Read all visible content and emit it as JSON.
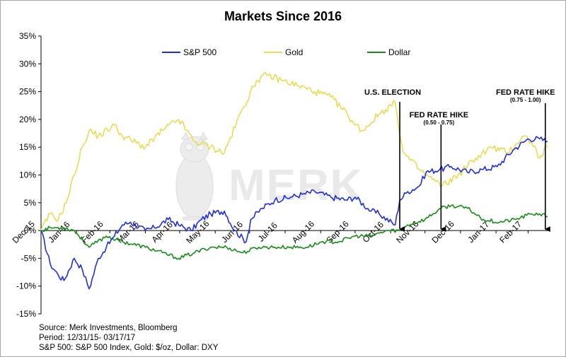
{
  "chart_data": {
    "type": "line",
    "title": "Markets Since 2016",
    "ylim": [
      -15,
      35
    ],
    "y_ticks": [
      "35%",
      "30%",
      "25%",
      "20%",
      "15%",
      "10%",
      "5%",
      "0%",
      "-5%",
      "-10%",
      "-15%"
    ],
    "x_ticks": [
      "Dec-15",
      "Jan-16",
      "Feb-16",
      "Mar-16",
      "Apr-16",
      "May-16",
      "Jun-16",
      "Jul-16",
      "Aug-16",
      "Sep-16",
      "Oct-16",
      "Nov-16",
      "Dec-16",
      "Jan-17",
      "Feb-17"
    ],
    "legend_position": "top",
    "grid": false,
    "series": [
      {
        "name": "S&P 500",
        "color": "#1f2fe0",
        "x": [
          "2015-12-31",
          "2016-01-08",
          "2016-01-15",
          "2016-01-20",
          "2016-01-29",
          "2016-02-05",
          "2016-02-11",
          "2016-02-19",
          "2016-02-26",
          "2016-03-04",
          "2016-03-11",
          "2016-03-18",
          "2016-03-31",
          "2016-04-08",
          "2016-04-20",
          "2016-04-29",
          "2016-05-10",
          "2016-05-19",
          "2016-05-27",
          "2016-06-08",
          "2016-06-17",
          "2016-06-27",
          "2016-07-01",
          "2016-07-11",
          "2016-07-22",
          "2016-08-05",
          "2016-08-15",
          "2016-08-26",
          "2016-09-09",
          "2016-09-22",
          "2016-09-30",
          "2016-10-14",
          "2016-10-21",
          "2016-11-04",
          "2016-11-08",
          "2016-11-15",
          "2016-11-25",
          "2016-12-01",
          "2016-12-13",
          "2016-12-23",
          "2017-01-06",
          "2017-01-20",
          "2017-02-01",
          "2017-02-15",
          "2017-02-28",
          "2017-03-10",
          "2017-03-17"
        ],
        "values": [
          0,
          -6,
          -8,
          -9,
          -5,
          -7,
          -10.5,
          -5,
          -3,
          -1,
          1,
          1.5,
          0,
          0.5,
          2,
          1,
          0,
          2,
          3,
          3.5,
          0,
          -2,
          2,
          4,
          5.5,
          6,
          6.5,
          7,
          6,
          5.5,
          6,
          3.5,
          3,
          1,
          5.5,
          7,
          8,
          10.5,
          11,
          11.5,
          10.5,
          11,
          11.5,
          14.5,
          16.5,
          16.5,
          16
        ]
      },
      {
        "name": "Gold",
        "color": "#e8dc57",
        "x": [
          "2015-12-31",
          "2016-01-08",
          "2016-01-15",
          "2016-01-22",
          "2016-01-29",
          "2016-02-05",
          "2016-02-11",
          "2016-02-19",
          "2016-03-04",
          "2016-03-11",
          "2016-03-31",
          "2016-04-15",
          "2016-04-29",
          "2016-05-13",
          "2016-05-27",
          "2016-06-08",
          "2016-06-24",
          "2016-07-06",
          "2016-07-15",
          "2016-07-29",
          "2016-08-12",
          "2016-08-26",
          "2016-09-09",
          "2016-09-23",
          "2016-09-30",
          "2016-10-07",
          "2016-10-21",
          "2016-11-04",
          "2016-11-11",
          "2016-11-25",
          "2016-12-01",
          "2016-12-15",
          "2016-12-29",
          "2017-01-13",
          "2017-01-27",
          "2017-02-10",
          "2017-02-24",
          "2017-03-03",
          "2017-03-10",
          "2017-03-17"
        ],
        "values": [
          0,
          3,
          2,
          5,
          10,
          15,
          18,
          17,
          19,
          17,
          15,
          18,
          20,
          16,
          15,
          14,
          22,
          27,
          28,
          27,
          26,
          25,
          24,
          21,
          19,
          18,
          21,
          23,
          14,
          11,
          10,
          8,
          10,
          13,
          15,
          14,
          17,
          16,
          13,
          15
        ]
      },
      {
        "name": "Dollar",
        "color": "#1a8a1a",
        "x": [
          "2015-12-31",
          "2016-01-08",
          "2016-01-20",
          "2016-01-29",
          "2016-02-11",
          "2016-02-26",
          "2016-03-11",
          "2016-03-31",
          "2016-04-15",
          "2016-04-29",
          "2016-05-13",
          "2016-05-27",
          "2016-06-10",
          "2016-06-24",
          "2016-07-08",
          "2016-07-22",
          "2016-08-05",
          "2016-08-19",
          "2016-09-02",
          "2016-09-16",
          "2016-09-30",
          "2016-10-14",
          "2016-10-28",
          "2016-11-08",
          "2016-11-15",
          "2016-11-30",
          "2016-12-14",
          "2016-12-23",
          "2017-01-06",
          "2017-01-20",
          "2017-02-03",
          "2017-02-17",
          "2017-03-03",
          "2017-03-10",
          "2017-03-17"
        ],
        "values": [
          0,
          0.5,
          0.5,
          0,
          -3,
          -1,
          -2,
          -3,
          -4,
          -5,
          -4,
          -3,
          -3,
          -4,
          -3,
          -3,
          -3,
          -3,
          -2,
          -2,
          -1,
          -1,
          0,
          0,
          1,
          2,
          4,
          4.5,
          4,
          2,
          1.5,
          2,
          3,
          3,
          2.5
        ]
      }
    ],
    "annotations": [
      {
        "label": "U.S. ELECTION",
        "sub": "",
        "date": "2016-11-08"
      },
      {
        "label": "FED RATE HIKE",
        "sub": "(0.50 - 0.75)",
        "date": "2016-12-14"
      },
      {
        "label": "FED RATE HIKE",
        "sub": "(0.75 - 1.00)",
        "date": "2017-03-15"
      }
    ],
    "watermark": "MERK",
    "footer": [
      "Source: Merk Investments, Bloomberg",
      "Period: 12/31/15- 03/17/17",
      "S&P 500: S&P 500 Index, Gold: $/oz, Dollar: DXY"
    ]
  }
}
